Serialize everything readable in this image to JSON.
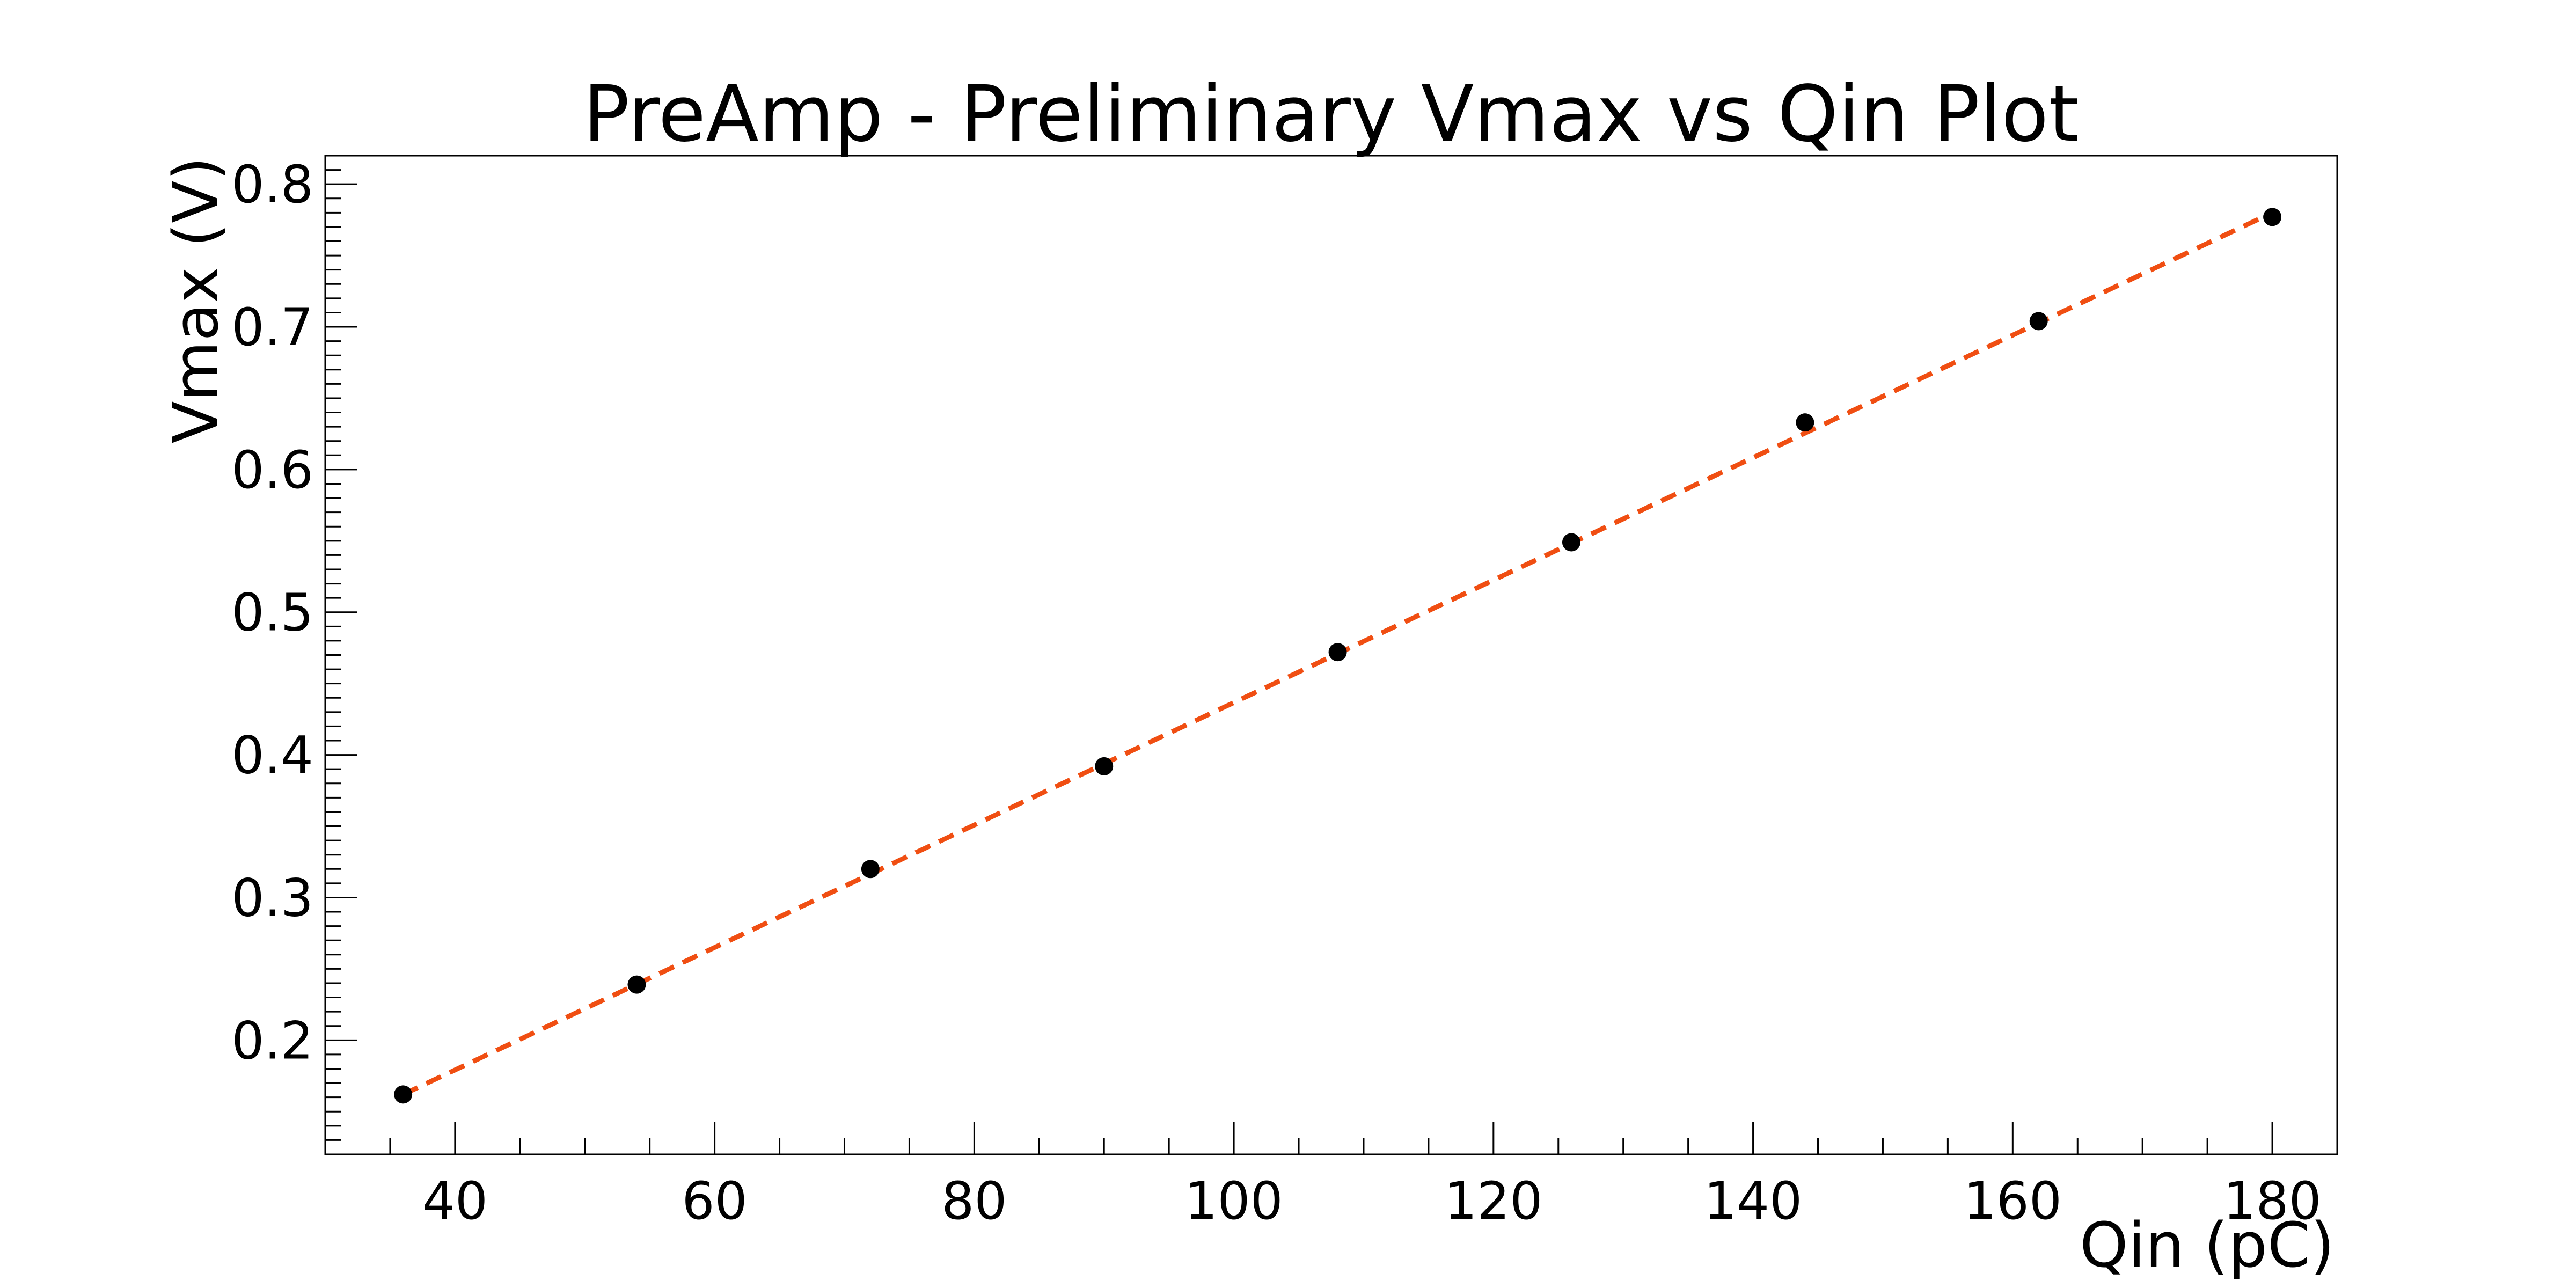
{
  "chart_data": {
    "type": "scatter",
    "title": "PreAmp - Preliminary Vmax vs Qin Plot",
    "xlabel": "Qin (pC)",
    "ylabel": "Vmax (V)",
    "xlim": [
      30,
      185
    ],
    "ylim": [
      0.12,
      0.82
    ],
    "xticks": [
      40,
      60,
      80,
      100,
      120,
      140,
      160,
      180
    ],
    "xtick_labels": [
      "40",
      "60",
      "80",
      "100",
      "120",
      "140",
      "160",
      "180"
    ],
    "yticks": [
      0.2,
      0.3,
      0.4,
      0.5,
      0.6,
      0.7,
      0.8
    ],
    "ytick_labels": [
      "0.2",
      "0.3",
      "0.4",
      "0.5",
      "0.6",
      "0.7",
      "0.8"
    ],
    "grid": false,
    "series": [
      {
        "kind": "points",
        "color": "#000000",
        "x": [
          36,
          54,
          72,
          90,
          108,
          126,
          144,
          162,
          180
        ],
        "y": [
          0.162,
          0.239,
          0.32,
          0.392,
          0.472,
          0.549,
          0.633,
          0.704,
          0.777
        ]
      },
      {
        "kind": "fit-line",
        "color": "#f04e12",
        "style": "dashed",
        "x": [
          36,
          180
        ],
        "y": [
          0.162,
          0.78
        ]
      }
    ]
  }
}
